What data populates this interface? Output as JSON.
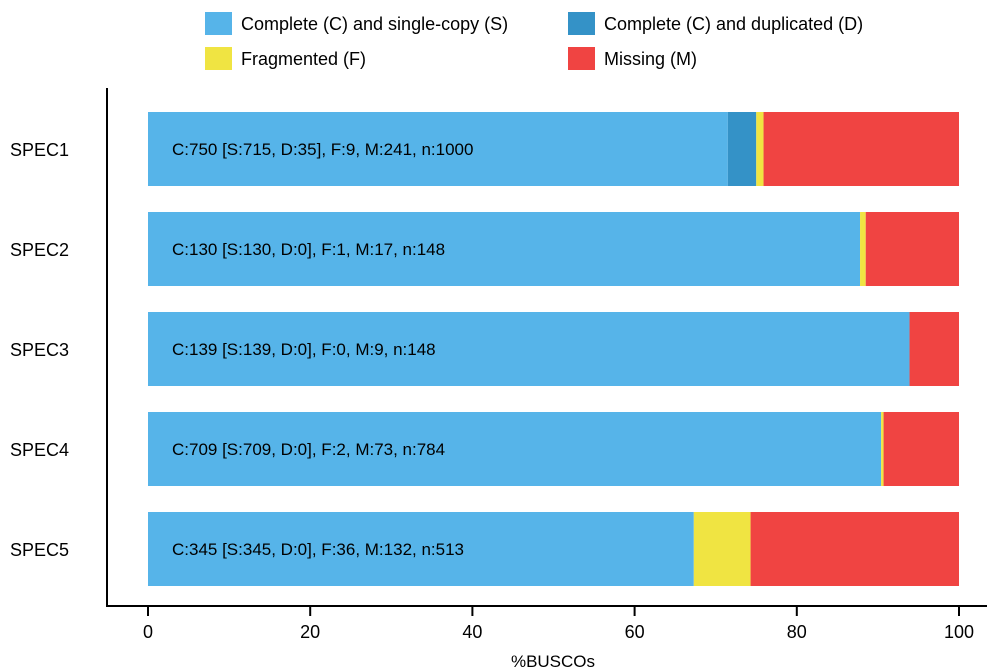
{
  "chart_data": {
    "type": "bar",
    "orientation": "horizontal",
    "stacked": true,
    "title": "",
    "xlabel": "%BUSCOs",
    "ylabel": "",
    "xlim": [
      0,
      100
    ],
    "x_ticks": [
      "0",
      "20",
      "40",
      "60",
      "80",
      "100"
    ],
    "grid": false,
    "legend_position": "top",
    "categories": [
      "SPEC1",
      "SPEC2",
      "SPEC3",
      "SPEC4",
      "SPEC5"
    ],
    "annotations": [
      "C:750 [S:715, D:35], F:9, M:241, n:1000",
      "C:130 [S:130, D:0], F:1, M:17, n:148",
      "C:139 [S:139, D:0], F:0, M:9, n:148",
      "C:709 [S:709, D:0], F:2, M:73, n:784",
      "C:345 [S:345, D:0], F:36, M:132, n:513"
    ],
    "series": [
      {
        "name": "Complete (C) and single-copy (S)",
        "color": "#56b4e9",
        "values": [
          71.5,
          87.8,
          93.9,
          90.4,
          67.3
        ]
      },
      {
        "name": "Complete (C) and duplicated (D)",
        "color": "#3492c7",
        "values": [
          3.5,
          0,
          0,
          0,
          0
        ]
      },
      {
        "name": "Fragmented (F)",
        "color": "#f0e442",
        "values": [
          0.9,
          0.7,
          0,
          0.3,
          7.0
        ]
      },
      {
        "name": "Missing (M)",
        "color": "#f04442",
        "values": [
          24.1,
          11.5,
          6.1,
          9.3,
          25.7
        ]
      }
    ]
  }
}
